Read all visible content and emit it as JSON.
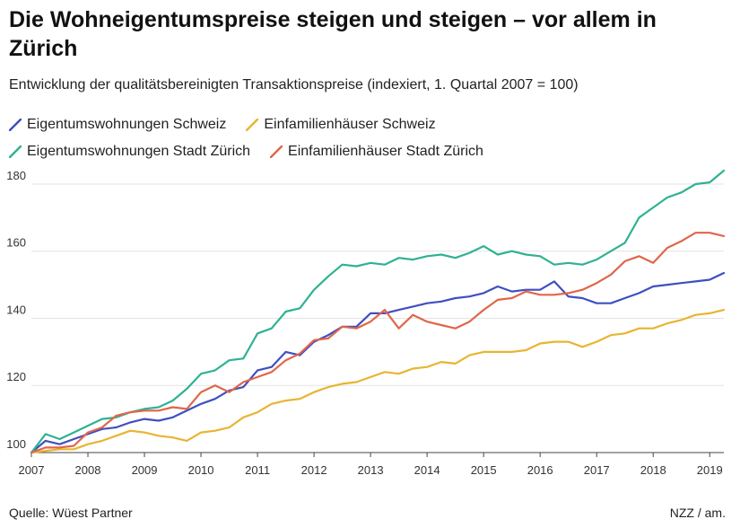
{
  "title": "Die Wohneigentumspreise steigen und steigen – vor allem in Zürich",
  "subtitle": "Entwicklung der qualitätsbereinigten Transaktionspreise (indexiert, 1. Quartal 2007 = 100)",
  "footer": {
    "source": "Quelle: Wüest Partner",
    "credit": "NZZ / am."
  },
  "chart_data": {
    "type": "line",
    "title": "Die Wohneigentumspreise steigen und steigen – vor allem in Zürich",
    "subtitle": "Entwicklung der qualitätsbereinigten Transaktionspreise (indexiert, 1. Quartal 2007 = 100)",
    "xlabel": "",
    "ylabel": "",
    "xlim": [
      2007.0,
      2019.25
    ],
    "ylim": [
      100,
      184
    ],
    "grid": true,
    "legend_position": "top-left",
    "x_ticks": [
      "2007",
      "2008",
      "2009",
      "2010",
      "2011",
      "2012",
      "2013",
      "2014",
      "2015",
      "2016",
      "2017",
      "2018",
      "2019"
    ],
    "y_ticks": [
      100,
      120,
      140,
      160,
      180
    ],
    "x": [
      2007.0,
      2007.25,
      2007.5,
      2007.75,
      2008.0,
      2008.25,
      2008.5,
      2008.75,
      2009.0,
      2009.25,
      2009.5,
      2009.75,
      2010.0,
      2010.25,
      2010.5,
      2010.75,
      2011.0,
      2011.25,
      2011.5,
      2011.75,
      2012.0,
      2012.25,
      2012.5,
      2012.75,
      2013.0,
      2013.25,
      2013.5,
      2013.75,
      2014.0,
      2014.25,
      2014.5,
      2014.75,
      2015.0,
      2015.25,
      2015.5,
      2015.75,
      2016.0,
      2016.25,
      2016.5,
      2016.75,
      2017.0,
      2017.25,
      2017.5,
      2017.75,
      2018.0,
      2018.25,
      2018.5,
      2018.75,
      2019.0,
      2019.25
    ],
    "series": [
      {
        "name": "Eigentumswohnungen Schweiz",
        "color": "#3f4fbf",
        "values": [
          100,
          103.5,
          102.5,
          104,
          105.5,
          107,
          107.5,
          109,
          110,
          109.5,
          110.5,
          112.5,
          114.5,
          116,
          118.5,
          119.5,
          124.5,
          125.5,
          130,
          129,
          133,
          135,
          137.5,
          137.5,
          141.5,
          141.5,
          142.5,
          143.5,
          144.5,
          145,
          146,
          146.5,
          147.5,
          149.5,
          148,
          148.5,
          148.5,
          151,
          146.5,
          146,
          144.5,
          144.5,
          146,
          147.5,
          149.5,
          150,
          150.5,
          151,
          151.5,
          153.5
        ]
      },
      {
        "name": "Einfamilienhäuser Schweiz",
        "color": "#e8b531",
        "values": [
          100,
          100.5,
          101,
          101,
          102.5,
          103.5,
          105,
          106.5,
          106,
          105,
          104.5,
          103.5,
          106,
          106.5,
          107.5,
          110.5,
          112,
          114.5,
          115.5,
          116,
          118,
          119.5,
          120.5,
          121,
          122.5,
          124,
          123.5,
          125,
          125.5,
          127,
          126.5,
          129,
          130,
          130,
          130,
          130.5,
          132.5,
          133,
          133,
          131.5,
          133,
          135,
          135.5,
          137,
          137,
          138.5,
          139.5,
          141,
          141.5,
          142.5
        ]
      },
      {
        "name": "Eigentumswohnungen Stadt Zürich",
        "color": "#2fb292",
        "values": [
          100,
          105.5,
          104,
          106,
          108,
          110,
          110.5,
          112,
          113,
          113.5,
          115.5,
          119,
          123.5,
          124.5,
          127.5,
          128,
          135.5,
          137,
          142,
          143,
          148.5,
          152.5,
          156,
          155.5,
          156.5,
          156,
          158,
          157.5,
          158.5,
          159,
          158,
          159.5,
          161.5,
          159,
          160,
          159,
          158.5,
          156,
          156.5,
          156,
          157.5,
          160,
          162.5,
          170,
          173,
          176,
          177.5,
          180,
          180.5,
          184
        ]
      },
      {
        "name": "Einfamilienhäuser Stadt Zürich",
        "color": "#e0664a",
        "values": [
          100,
          101.5,
          101.5,
          102,
          106,
          107.5,
          111,
          112,
          112.5,
          112.5,
          113.5,
          113,
          118,
          120,
          118,
          121,
          122.5,
          124,
          127.5,
          129.5,
          133.5,
          134,
          137.5,
          137,
          139,
          142.5,
          137,
          141,
          139,
          138,
          137,
          139,
          142.5,
          145.5,
          146,
          148,
          147,
          147,
          147.5,
          148.5,
          150.5,
          153,
          157,
          158.5,
          156.5,
          161,
          163,
          165.5,
          165.5,
          164.5
        ]
      }
    ]
  }
}
